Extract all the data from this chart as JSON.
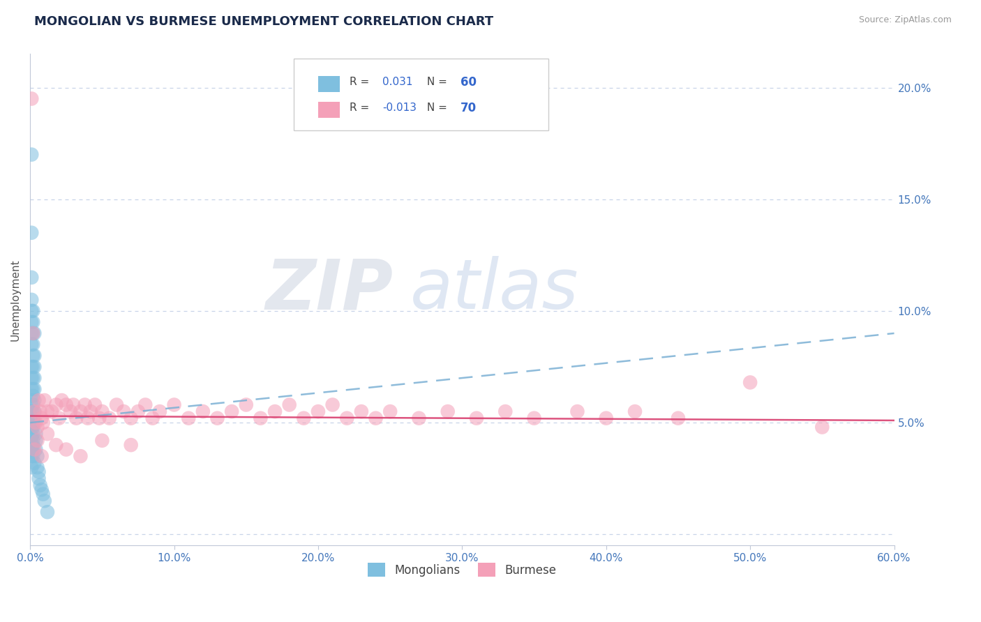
{
  "title": "MONGOLIAN VS BURMESE UNEMPLOYMENT CORRELATION CHART",
  "source": "Source: ZipAtlas.com",
  "ylabel": "Unemployment",
  "xlim": [
    0,
    0.6
  ],
  "ylim": [
    -0.005,
    0.215
  ],
  "mongolian_color": "#7fbfdf",
  "burmese_color": "#f4a0b8",
  "mongolian_R": 0.031,
  "mongolian_N": 60,
  "burmese_R": -0.013,
  "burmese_N": 70,
  "mongolian_trend_color": "#7ab0d4",
  "burmese_trend_color": "#d94070",
  "watermark_zip": "ZIP",
  "watermark_atlas": "atlas",
  "mongolian_x": [
    0.001,
    0.001,
    0.001,
    0.001,
    0.001,
    0.001,
    0.001,
    0.001,
    0.001,
    0.001,
    0.001,
    0.001,
    0.001,
    0.001,
    0.001,
    0.001,
    0.001,
    0.001,
    0.001,
    0.001,
    0.002,
    0.002,
    0.002,
    0.002,
    0.002,
    0.002,
    0.002,
    0.002,
    0.002,
    0.002,
    0.002,
    0.002,
    0.002,
    0.002,
    0.002,
    0.002,
    0.002,
    0.002,
    0.002,
    0.003,
    0.003,
    0.003,
    0.003,
    0.003,
    0.003,
    0.003,
    0.003,
    0.003,
    0.004,
    0.004,
    0.004,
    0.005,
    0.005,
    0.006,
    0.006,
    0.007,
    0.008,
    0.009,
    0.01,
    0.012
  ],
  "mongolian_y": [
    0.17,
    0.135,
    0.115,
    0.105,
    0.1,
    0.095,
    0.09,
    0.085,
    0.075,
    0.07,
    0.065,
    0.06,
    0.055,
    0.05,
    0.048,
    0.044,
    0.04,
    0.038,
    0.035,
    0.03,
    0.1,
    0.095,
    0.09,
    0.085,
    0.08,
    0.075,
    0.07,
    0.065,
    0.062,
    0.058,
    0.055,
    0.052,
    0.05,
    0.048,
    0.045,
    0.042,
    0.04,
    0.038,
    0.035,
    0.032,
    0.09,
    0.08,
    0.075,
    0.07,
    0.065,
    0.06,
    0.055,
    0.05,
    0.045,
    0.042,
    0.038,
    0.035,
    0.03,
    0.028,
    0.025,
    0.022,
    0.02,
    0.018,
    0.015,
    0.01
  ],
  "burmese_x": [
    0.001,
    0.002,
    0.003,
    0.004,
    0.005,
    0.006,
    0.007,
    0.008,
    0.009,
    0.01,
    0.012,
    0.015,
    0.018,
    0.02,
    0.022,
    0.025,
    0.028,
    0.03,
    0.032,
    0.035,
    0.038,
    0.04,
    0.042,
    0.045,
    0.048,
    0.05,
    0.055,
    0.06,
    0.065,
    0.07,
    0.075,
    0.08,
    0.085,
    0.09,
    0.1,
    0.11,
    0.12,
    0.13,
    0.14,
    0.15,
    0.16,
    0.17,
    0.18,
    0.19,
    0.2,
    0.21,
    0.22,
    0.23,
    0.24,
    0.25,
    0.27,
    0.29,
    0.31,
    0.33,
    0.35,
    0.38,
    0.4,
    0.42,
    0.45,
    0.5,
    0.003,
    0.005,
    0.008,
    0.012,
    0.018,
    0.025,
    0.035,
    0.05,
    0.07,
    0.55
  ],
  "burmese_y": [
    0.195,
    0.09,
    0.055,
    0.05,
    0.048,
    0.06,
    0.055,
    0.052,
    0.05,
    0.06,
    0.055,
    0.055,
    0.058,
    0.052,
    0.06,
    0.058,
    0.055,
    0.058,
    0.052,
    0.055,
    0.058,
    0.052,
    0.055,
    0.058,
    0.052,
    0.055,
    0.052,
    0.058,
    0.055,
    0.052,
    0.055,
    0.058,
    0.052,
    0.055,
    0.058,
    0.052,
    0.055,
    0.052,
    0.055,
    0.058,
    0.052,
    0.055,
    0.058,
    0.052,
    0.055,
    0.058,
    0.052,
    0.055,
    0.052,
    0.055,
    0.052,
    0.055,
    0.052,
    0.055,
    0.052,
    0.055,
    0.052,
    0.055,
    0.052,
    0.068,
    0.038,
    0.042,
    0.035,
    0.045,
    0.04,
    0.038,
    0.035,
    0.042,
    0.04,
    0.048
  ],
  "ytick_vals": [
    0.0,
    0.05,
    0.1,
    0.15,
    0.2
  ],
  "ytick_labels": [
    "",
    "5.0%",
    "10.0%",
    "15.0%",
    "20.0%"
  ],
  "xtick_vals": [
    0.0,
    0.1,
    0.2,
    0.3,
    0.4,
    0.5,
    0.6
  ],
  "xtick_labels": [
    "0.0%",
    "10.0%",
    "20.0%",
    "30.0%",
    "40.0%",
    "50.0%",
    "60.0%"
  ],
  "grid_color": "#c8d4e8",
  "background_color": "#ffffff",
  "axis_color": "#c0c8d8",
  "tick_color": "#4477bb"
}
